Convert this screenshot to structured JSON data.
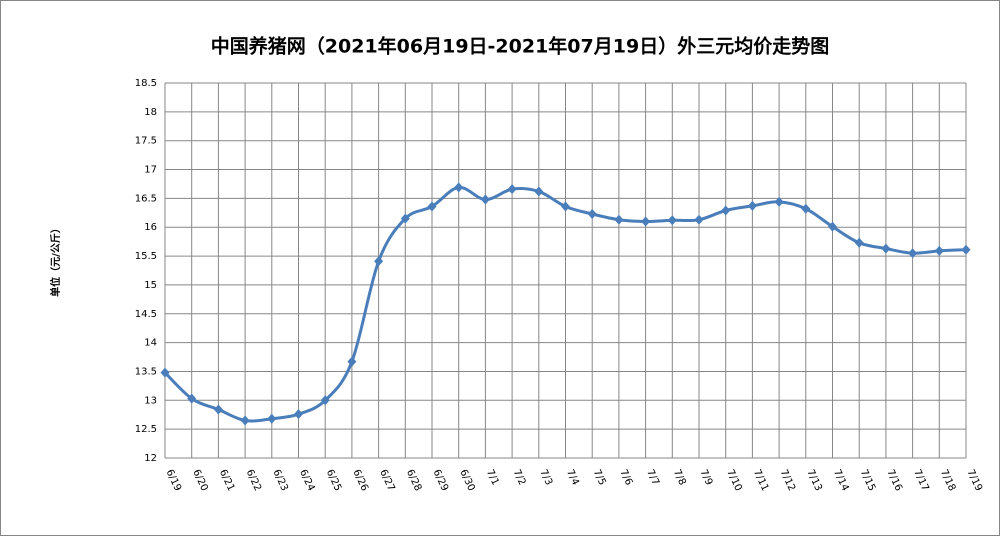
{
  "chart_data": {
    "type": "line",
    "title": "中国养猪网（2021年06月19日-2021年07月19日）外三元均价走势图",
    "y_label": "单位（元/公斤）",
    "categories": [
      "6/19",
      "6/20",
      "6/21",
      "6/22",
      "6/23",
      "6/24",
      "6/25",
      "6/26",
      "6/27",
      "6/28",
      "6/29",
      "6/30",
      "7/1",
      "7/2",
      "7/3",
      "7/4",
      "7/5",
      "7/6",
      "7/7",
      "7/8",
      "7/9",
      "7/10",
      "7/11",
      "7/12",
      "7/13",
      "7/14",
      "7/15",
      "7/16",
      "7/17",
      "7/18",
      "7/19"
    ],
    "series": [
      {
        "name": "外三元均价",
        "color": "#4a7ebb",
        "values": [
          13.48,
          13.03,
          12.84,
          12.65,
          12.68,
          12.76,
          13.0,
          13.67,
          15.41,
          16.15,
          16.36,
          16.69,
          16.48,
          16.66,
          16.62,
          16.36,
          16.23,
          16.13,
          16.1,
          16.12,
          16.13,
          16.29,
          16.37,
          16.44,
          16.32,
          16.01,
          15.73,
          15.63,
          15.55,
          15.59,
          15.61
        ]
      }
    ],
    "ylim": [
      12,
      18.5
    ],
    "yticks": [
      12,
      12.5,
      13,
      13.5,
      14,
      14.5,
      15,
      15.5,
      16,
      16.5,
      17,
      17.5,
      18,
      18.5
    ],
    "grid": true
  }
}
